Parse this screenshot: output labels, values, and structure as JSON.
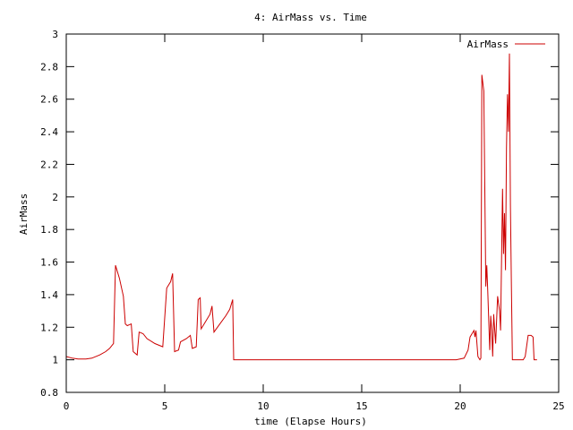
{
  "chart_data": {
    "type": "line",
    "title": "4: AirMass vs. Time",
    "xlabel": "time (Elapse Hours)",
    "ylabel": "AirMass",
    "xlim": [
      0,
      25
    ],
    "ylim": [
      0.8,
      3
    ],
    "xticks": [
      0,
      5,
      10,
      15,
      20,
      25
    ],
    "yticks": [
      0.8,
      1,
      1.2,
      1.4,
      1.6,
      1.8,
      2,
      2.2,
      2.4,
      2.6,
      2.8,
      3
    ],
    "grid": false,
    "legend_position": "top-right",
    "series": [
      {
        "name": "AirMass",
        "color": "#cc0000",
        "points": [
          [
            0,
            1.02
          ],
          [
            0.3,
            1.01
          ],
          [
            0.6,
            1.005
          ],
          [
            1.0,
            1.005
          ],
          [
            1.3,
            1.01
          ],
          [
            1.7,
            1.03
          ],
          [
            2.0,
            1.05
          ],
          [
            2.2,
            1.07
          ],
          [
            2.4,
            1.1
          ],
          [
            2.5,
            1.58
          ],
          [
            2.7,
            1.5
          ],
          [
            2.9,
            1.39
          ],
          [
            3.0,
            1.22
          ],
          [
            3.1,
            1.21
          ],
          [
            3.3,
            1.22
          ],
          [
            3.4,
            1.05
          ],
          [
            3.6,
            1.03
          ],
          [
            3.7,
            1.17
          ],
          [
            3.9,
            1.16
          ],
          [
            4.1,
            1.13
          ],
          [
            4.5,
            1.1
          ],
          [
            4.9,
            1.08
          ],
          [
            5.1,
            1.44
          ],
          [
            5.3,
            1.48
          ],
          [
            5.4,
            1.53
          ],
          [
            5.5,
            1.05
          ],
          [
            5.7,
            1.06
          ],
          [
            5.8,
            1.11
          ],
          [
            6.1,
            1.13
          ],
          [
            6.3,
            1.15
          ],
          [
            6.4,
            1.07
          ],
          [
            6.6,
            1.08
          ],
          [
            6.7,
            1.37
          ],
          [
            6.8,
            1.38
          ],
          [
            6.85,
            1.19
          ],
          [
            7.1,
            1.24
          ],
          [
            7.3,
            1.28
          ],
          [
            7.4,
            1.33
          ],
          [
            7.5,
            1.17
          ],
          [
            7.8,
            1.22
          ],
          [
            8.1,
            1.27
          ],
          [
            8.3,
            1.31
          ],
          [
            8.45,
            1.37
          ],
          [
            8.5,
            1.0
          ],
          [
            19.8,
            1.0
          ],
          [
            20.2,
            1.01
          ],
          [
            20.4,
            1.06
          ],
          [
            20.5,
            1.14
          ],
          [
            20.6,
            1.16
          ],
          [
            20.7,
            1.18
          ],
          [
            20.75,
            1.14
          ],
          [
            20.8,
            1.18
          ],
          [
            20.9,
            1.02
          ],
          [
            21.0,
            1.0
          ],
          [
            21.05,
            1.01
          ],
          [
            21.1,
            2.75
          ],
          [
            21.2,
            2.65
          ],
          [
            21.3,
            1.45
          ],
          [
            21.35,
            1.58
          ],
          [
            21.4,
            1.42
          ],
          [
            21.5,
            1.06
          ],
          [
            21.55,
            1.27
          ],
          [
            21.6,
            1.18
          ],
          [
            21.65,
            1.02
          ],
          [
            21.7,
            1.28
          ],
          [
            21.8,
            1.1
          ],
          [
            21.9,
            1.39
          ],
          [
            22.0,
            1.3
          ],
          [
            22.05,
            1.18
          ],
          [
            22.15,
            2.05
          ],
          [
            22.2,
            1.65
          ],
          [
            22.25,
            1.9
          ],
          [
            22.3,
            1.55
          ],
          [
            22.35,
            2.3
          ],
          [
            22.4,
            2.63
          ],
          [
            22.45,
            2.4
          ],
          [
            22.5,
            2.88
          ],
          [
            22.55,
            1.95
          ],
          [
            22.6,
            1.45
          ],
          [
            22.65,
            1.0
          ],
          [
            23.2,
            1.0
          ],
          [
            23.3,
            1.02
          ],
          [
            23.45,
            1.15
          ],
          [
            23.6,
            1.15
          ],
          [
            23.7,
            1.14
          ],
          [
            23.75,
            1.0
          ],
          [
            23.9,
            1.0
          ]
        ]
      }
    ]
  }
}
